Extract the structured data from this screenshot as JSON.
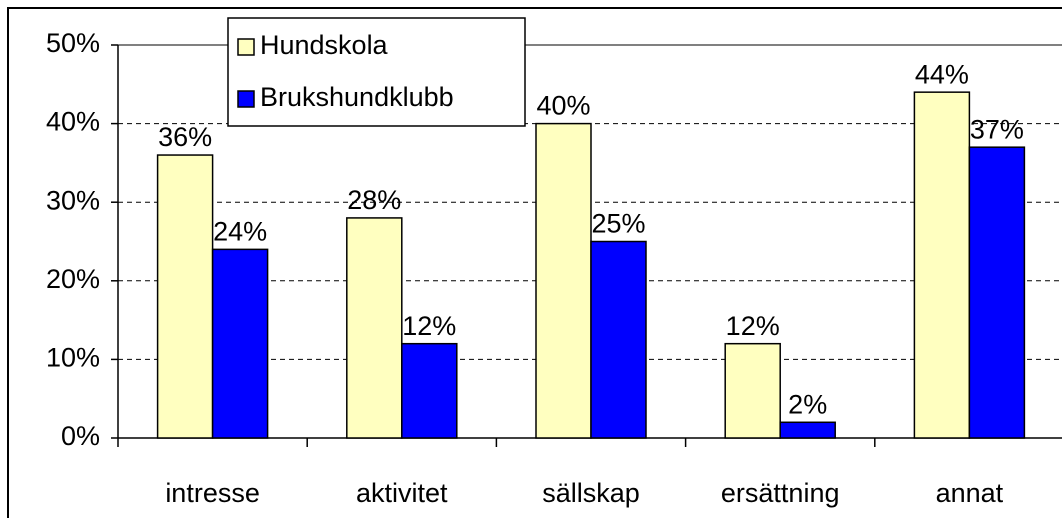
{
  "chart_data": {
    "type": "bar",
    "categories": [
      "intresse",
      "aktivitet",
      "sällskap",
      "ersättning",
      "annat"
    ],
    "series": [
      {
        "name": "Hundskola",
        "color": "#ffffc0",
        "values": [
          36,
          28,
          40,
          12,
          44
        ],
        "value_labels": [
          "36%",
          "28%",
          "40%",
          "12%",
          "44%"
        ]
      },
      {
        "name": "Brukshundklubb",
        "color": "#0000ff",
        "values": [
          24,
          12,
          25,
          2,
          37
        ],
        "value_labels": [
          "24%",
          "12%",
          "25%",
          "2%",
          "37%"
        ]
      }
    ],
    "ylim": [
      0,
      50
    ],
    "yticks": [
      {
        "value": 0,
        "label": "0%"
      },
      {
        "value": 10,
        "label": "10%"
      },
      {
        "value": 20,
        "label": "20%"
      },
      {
        "value": 30,
        "label": "30%"
      },
      {
        "value": 40,
        "label": "40%"
      },
      {
        "value": 50,
        "label": "50%"
      }
    ],
    "grid": true,
    "legend": "top-left"
  }
}
